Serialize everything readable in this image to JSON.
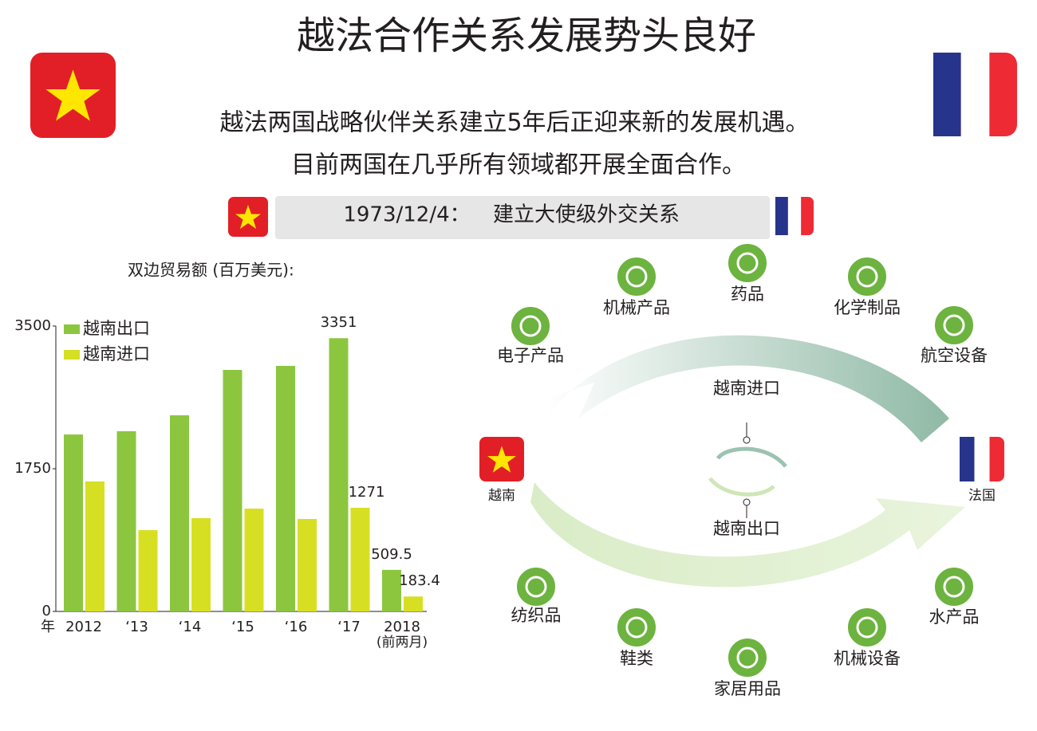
{
  "header": {
    "title": "越法合作关系发展势头良好",
    "subtitle": [
      "越法两国战略伙伴关系建立5年后正迎来新的发展机遇。",
      "目前两国在几乎所有领域都开展全面合作。"
    ],
    "milestone": {
      "date": "1973/12/4：",
      "text": "建立大使级外交关系"
    }
  },
  "chart_data": {
    "type": "bar",
    "title": "双边贸易额 (百万美元):",
    "x_label": "年",
    "categories": [
      "2012",
      "‘13",
      "‘14",
      "‘15",
      "‘16",
      "‘17",
      "2018"
    ],
    "category_note": "(前两月)",
    "series": [
      {
        "name": "越南出口",
        "color": "#8cc63f",
        "values": [
          2170,
          2210,
          2405,
          2962,
          3011,
          3351,
          509.5
        ],
        "value_labels": [
          null,
          null,
          null,
          null,
          null,
          "3351",
          "509.5"
        ]
      },
      {
        "name": "越南进口",
        "color": "#d7df23",
        "values": [
          1594,
          997,
          1144,
          1261,
          1134,
          1271,
          183.4
        ],
        "value_labels": [
          null,
          null,
          null,
          null,
          null,
          "1271",
          "183.4"
        ]
      }
    ],
    "ylim": [
      0,
      3500
    ],
    "yticks": [
      0,
      1750,
      3500
    ],
    "grid": false,
    "legend": "top-left"
  },
  "diagram": {
    "left": "越南",
    "right": "法国",
    "import_label": "越南进口",
    "export_label": "越南出口",
    "imports": [
      "电子产品",
      "机械产品",
      "药品",
      "化学制品",
      "航空设备"
    ],
    "exports": [
      "纺织品",
      "鞋类",
      "家居用品",
      "机械设备",
      "水产品"
    ]
  }
}
